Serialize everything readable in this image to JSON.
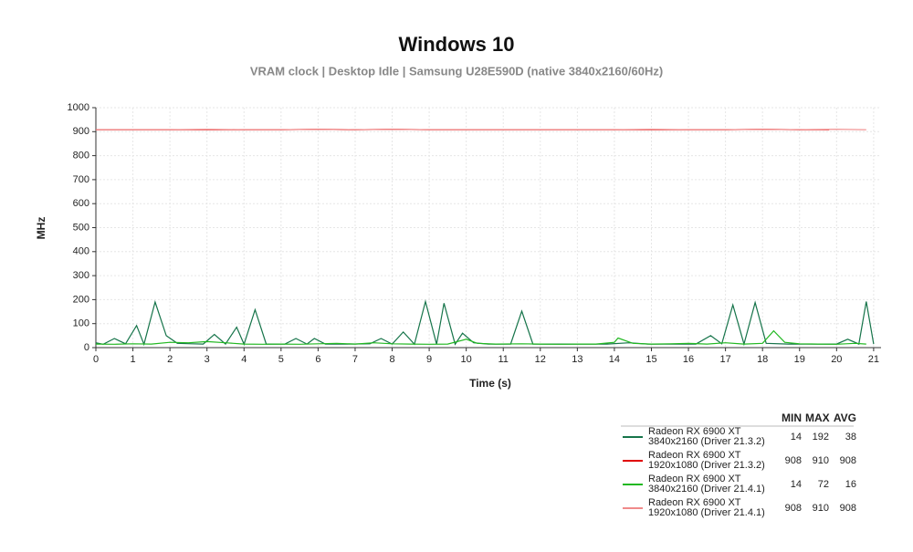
{
  "chart_data": {
    "type": "line",
    "title": "Windows 10",
    "subtitle": "VRAM clock |  Desktop Idle | Samsung U28E590D (native 3840x2160/60Hz)",
    "x_label": "Time (s)",
    "y_label": "MHz",
    "xlim": [
      0,
      21.2
    ],
    "xticks": [
      0,
      1,
      2,
      3,
      4,
      5,
      6,
      7,
      8,
      9,
      10,
      11,
      12,
      13,
      14,
      15,
      16,
      17,
      18,
      19,
      20,
      21
    ],
    "ylim": [
      0,
      1000
    ],
    "yticks": [
      0,
      100,
      200,
      300,
      400,
      500,
      600,
      700,
      800,
      900,
      1000
    ],
    "grid": true,
    "stats_header": [
      "MIN",
      "MAX",
      "AVG"
    ],
    "series": [
      {
        "name": "Radeon RX 6900 XT\n3840x2160 (Driver 21.3.2)",
        "color": "#16744a",
        "min": 14,
        "max": 192,
        "avg": 38,
        "x": [
          0,
          0.2,
          0.5,
          0.8,
          1.1,
          1.3,
          1.6,
          1.9,
          2.2,
          2.6,
          2.9,
          3.2,
          3.5,
          3.8,
          4.0,
          4.3,
          4.6,
          5.1,
          5.4,
          5.7,
          5.9,
          6.2,
          6.8,
          7.4,
          7.7,
          8.0,
          8.3,
          8.6,
          8.9,
          9.2,
          9.4,
          9.7,
          9.9,
          10.2,
          10.6,
          11.2,
          11.5,
          11.8,
          12.5,
          13.2,
          13.8,
          14.4,
          14.9,
          15.6,
          16.2,
          16.6,
          16.9,
          17.2,
          17.5,
          17.8,
          18.1,
          18.7,
          19.4,
          20.0,
          20.3,
          20.6,
          20.8,
          21.0
        ],
        "values": [
          20,
          14,
          38,
          16,
          92,
          14,
          190,
          50,
          18,
          16,
          15,
          55,
          15,
          85,
          14,
          158,
          15,
          15,
          38,
          15,
          38,
          15,
          15,
          16,
          38,
          15,
          65,
          14,
          192,
          14,
          185,
          14,
          60,
          20,
          15,
          15,
          152,
          15,
          15,
          15,
          15,
          20,
          15,
          15,
          15,
          50,
          16,
          178,
          15,
          188,
          18,
          15,
          15,
          15,
          35,
          15,
          192,
          15
        ]
      },
      {
        "name": "Radeon RX 6900 XT\n1920x1080 (Driver 21.3.2)",
        "color": "#e00000",
        "min": 908,
        "max": 910,
        "avg": 908,
        "x": [
          0,
          1,
          2,
          3,
          4,
          5,
          6,
          7,
          8,
          9,
          10,
          11,
          12,
          13,
          14,
          15,
          16,
          17,
          18,
          19,
          19.8
        ],
        "values": [
          908,
          908,
          908,
          908,
          908,
          908,
          910,
          908,
          910,
          908,
          908,
          908,
          908,
          908,
          908,
          908,
          908,
          908,
          910,
          908,
          908
        ]
      },
      {
        "name": "Radeon RX 6900 XT\n3840x2160 (Driver 21.4.1)",
        "color": "#22b822",
        "min": 14,
        "max": 72,
        "avg": 16,
        "x": [
          0,
          0.5,
          1,
          1.5,
          2,
          2.5,
          3,
          3.5,
          4,
          4.5,
          5,
          5.5,
          6,
          6.5,
          7,
          7.5,
          8,
          8.5,
          9,
          9.5,
          10,
          10.3,
          10.8,
          11.5,
          12,
          12.5,
          13,
          13.5,
          14,
          14.1,
          14.5,
          15,
          15.5,
          16,
          16.5,
          17,
          17.5,
          18,
          18.3,
          18.6,
          19,
          19.5,
          20,
          20.5,
          20.8
        ],
        "values": [
          15,
          14,
          16,
          15,
          22,
          20,
          25,
          20,
          15,
          14,
          15,
          14,
          16,
          18,
          15,
          20,
          16,
          15,
          14,
          15,
          35,
          18,
          15,
          16,
          15,
          14,
          15,
          15,
          22,
          40,
          18,
          15,
          16,
          18,
          15,
          20,
          15,
          18,
          70,
          22,
          16,
          15,
          14,
          18,
          15
        ]
      },
      {
        "name": "Radeon RX 6900 XT\n1920x1080 (Driver 21.4.1)",
        "color": "#f08a8a",
        "min": 908,
        "max": 910,
        "avg": 908,
        "x": [
          0,
          1,
          2,
          3,
          4,
          5,
          6,
          7,
          8,
          9,
          10,
          11,
          12,
          13,
          14,
          15,
          16,
          17,
          18,
          19,
          20,
          20.8
        ],
        "values": [
          908,
          908,
          908,
          910,
          908,
          908,
          910,
          908,
          910,
          908,
          908,
          908,
          908,
          908,
          908,
          910,
          908,
          908,
          910,
          908,
          910,
          908
        ]
      }
    ]
  }
}
